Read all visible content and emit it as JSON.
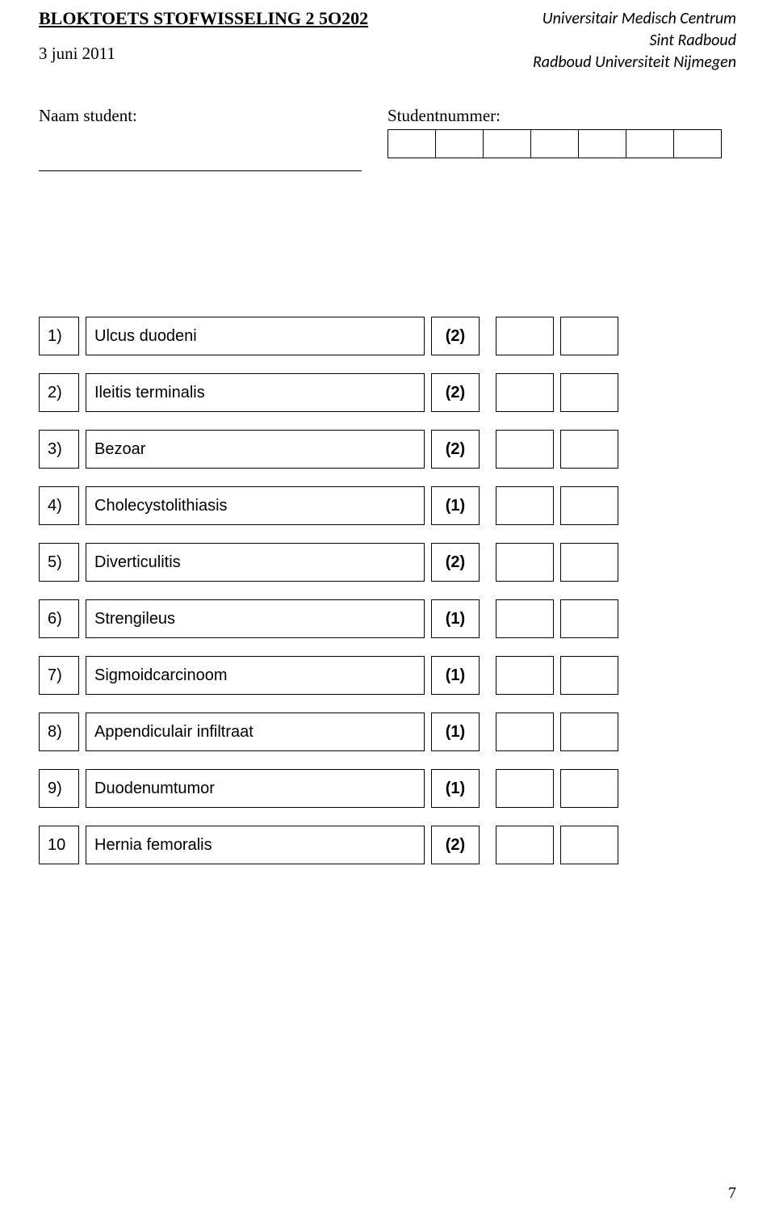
{
  "header": {
    "title": "BLOKTOETS STOFWISSELING 2 5O202",
    "date": "3 juni 2011",
    "institution_line1": "Universitair Medisch Centrum",
    "institution_line2": "Sint Radboud",
    "institution_line3": "Radboud Universiteit Nijmegen",
    "name_label": "Naam student:",
    "number_label": "Studentnummer:"
  },
  "items": [
    {
      "num": "1)",
      "term": "Ulcus duodeni",
      "score": "(2)"
    },
    {
      "num": "2)",
      "term": "Ileitis terminalis",
      "score": "(2)"
    },
    {
      "num": "3)",
      "term": "Bezoar",
      "score": "(2)"
    },
    {
      "num": "4)",
      "term": "Cholecystolithiasis",
      "score": "(1)"
    },
    {
      "num": "5)",
      "term": "Diverticulitis",
      "score": "(2)"
    },
    {
      "num": "6)",
      "term": " Strengileus",
      "score": "(1)"
    },
    {
      "num": "7)",
      "term": "Sigmoidcarcinoom",
      "score": "(1)"
    },
    {
      "num": "8)",
      "term": "Appendiculair infiltraat",
      "score": "(1)"
    },
    {
      "num": "9)",
      "term": "Duodenumtumor",
      "score": "(1)"
    },
    {
      "num": "10",
      "term": "Hernia femoralis",
      "score": "(2)"
    }
  ],
  "page_number": "7"
}
